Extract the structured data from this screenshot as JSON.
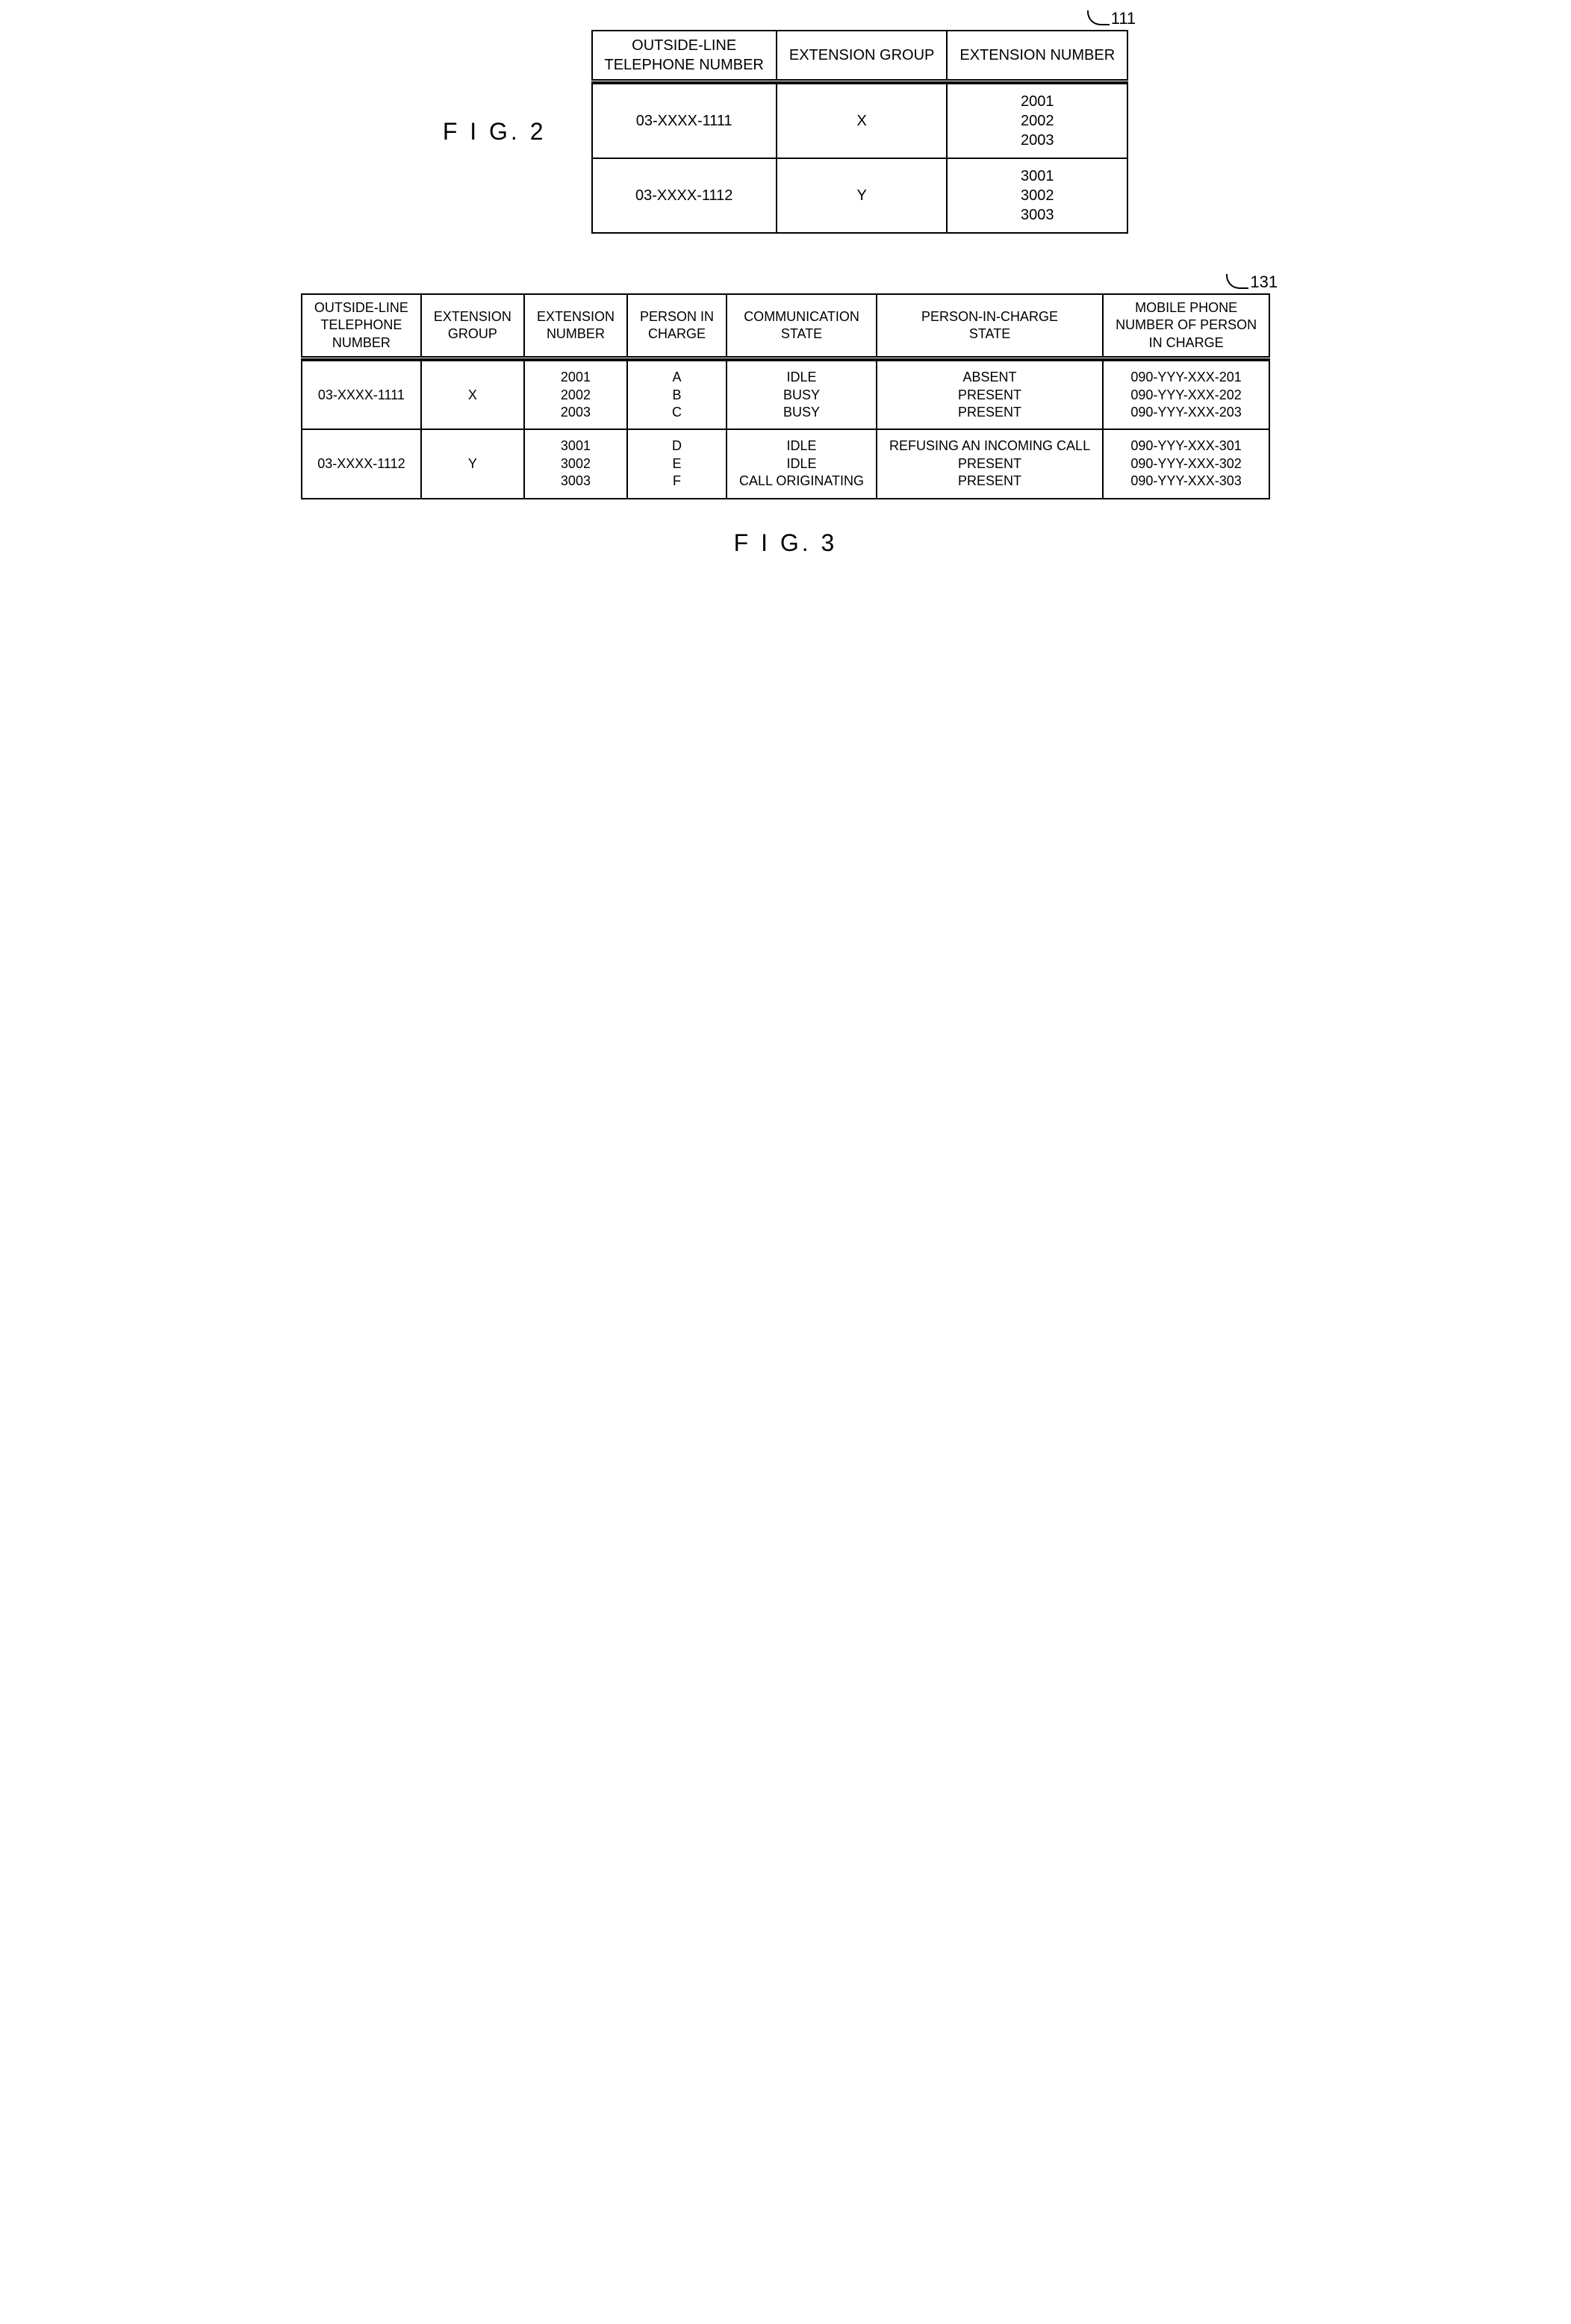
{
  "fig2": {
    "ref": "111",
    "caption": "F I G. 2",
    "headers": [
      "OUTSIDE-LINE\nTELEPHONE NUMBER",
      "EXTENSION GROUP",
      "EXTENSION NUMBER"
    ],
    "rows": [
      {
        "tel": "03-XXXX-1111",
        "group": "X",
        "ext": "2001\n2002\n2003"
      },
      {
        "tel": "03-XXXX-1112",
        "group": "Y",
        "ext": "3001\n3002\n3003"
      }
    ]
  },
  "fig3": {
    "ref": "131",
    "caption": "F I G. 3",
    "headers": [
      "OUTSIDE-LINE\nTELEPHONE\nNUMBER",
      "EXTENSION\nGROUP",
      "EXTENSION\nNUMBER",
      "PERSON IN\nCHARGE",
      "COMMUNICATION\nSTATE",
      "PERSON-IN-CHARGE\nSTATE",
      "MOBILE PHONE\nNUMBER OF PERSON\nIN CHARGE"
    ],
    "rows": [
      {
        "tel": "03-XXXX-1111",
        "group": "X",
        "ext": "2001\n2002\n2003",
        "pic": "A\nB\nC",
        "comm": "IDLE\nBUSY\nBUSY",
        "pstate": "ABSENT\nPRESENT\nPRESENT",
        "mobile": "090-YYY-XXX-201\n090-YYY-XXX-202\n090-YYY-XXX-203"
      },
      {
        "tel": "03-XXXX-1112",
        "group": "Y",
        "ext": "3001\n3002\n3003",
        "pic": "D\nE\nF",
        "comm": "IDLE\nIDLE\nCALL ORIGINATING",
        "pstate": "REFUSING AN INCOMING CALL\nPRESENT\nPRESENT",
        "mobile": "090-YYY-XXX-301\n090-YYY-XXX-302\n090-YYY-XXX-303"
      }
    ]
  }
}
